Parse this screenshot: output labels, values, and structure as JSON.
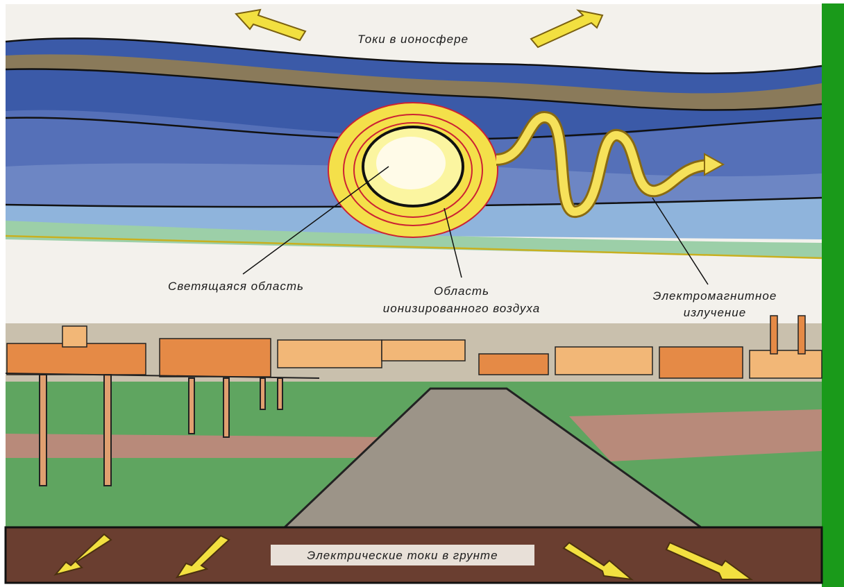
{
  "labels": {
    "ionosphere_currents": "Токи в ионосфере",
    "glowing_region": "Светящаяся область",
    "ionized_air": [
      "Область",
      "ионизированного воздуха"
    ],
    "em_radiation": [
      "Электромагнитное",
      "излучение"
    ],
    "ground_currents": "Электрические токи в грунте"
  }
}
